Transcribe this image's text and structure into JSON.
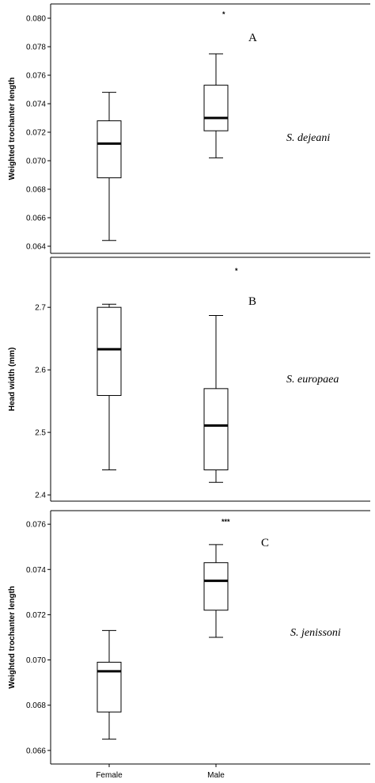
{
  "chart_data": [
    {
      "type": "box",
      "panel": "A",
      "species": "S. dejeani",
      "ylabel": "Weighted trochanter length",
      "ylim": [
        0.0635,
        0.081
      ],
      "yticks": [
        0.064,
        0.066,
        0.068,
        0.07,
        0.072,
        0.074,
        0.076,
        0.078,
        0.08
      ],
      "tick_decimals": 3,
      "categories": [
        "Female",
        "Male"
      ],
      "significance": "*",
      "boxes": [
        {
          "category": "Female",
          "min": 0.0644,
          "q1": 0.0688,
          "median": 0.0712,
          "q3": 0.0728,
          "max": 0.0748
        },
        {
          "category": "Male",
          "min": 0.0702,
          "q1": 0.0721,
          "median": 0.073,
          "q3": 0.0753,
          "max": 0.0775
        }
      ]
    },
    {
      "type": "box",
      "panel": "B",
      "species": "S. europaea",
      "ylabel": "Head width (mm)",
      "ylim": [
        2.39,
        2.78
      ],
      "yticks": [
        2.4,
        2.5,
        2.6,
        2.7
      ],
      "tick_decimals": 1,
      "categories": [
        "Female",
        "Male"
      ],
      "significance": "*",
      "boxes": [
        {
          "category": "Female",
          "min": 2.44,
          "q1": 2.559,
          "median": 2.633,
          "q3": 2.7,
          "max": 2.705
        },
        {
          "category": "Male",
          "min": 2.42,
          "q1": 2.44,
          "median": 2.511,
          "q3": 2.57,
          "max": 2.687
        }
      ]
    },
    {
      "type": "box",
      "panel": "C",
      "species": "S. jenissoni",
      "ylabel": "Weighted trochanter length",
      "ylim": [
        0.0654,
        0.0766
      ],
      "yticks": [
        0.066,
        0.068,
        0.07,
        0.072,
        0.074,
        0.076
      ],
      "tick_decimals": 3,
      "categories": [
        "Female",
        "Male"
      ],
      "significance": "***",
      "boxes": [
        {
          "category": "Female",
          "min": 0.0665,
          "q1": 0.0677,
          "median": 0.0695,
          "q3": 0.0699,
          "max": 0.0713
        },
        {
          "category": "Male",
          "min": 0.071,
          "q1": 0.0722,
          "median": 0.0735,
          "q3": 0.0743,
          "max": 0.0751
        }
      ]
    }
  ]
}
